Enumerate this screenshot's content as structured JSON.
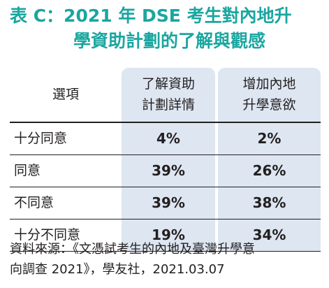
{
  "title": {
    "line1": "表 C：2021 年 DSE 考生對內地升",
    "line2": "學資助計劃的了解與觀感"
  },
  "table": {
    "options_header": "選項",
    "columns": [
      {
        "line1": "了解資助",
        "line2": "計劃詳情"
      },
      {
        "line1": "增加內地",
        "line2": "升學意欲"
      }
    ],
    "rows": [
      {
        "label": "十分同意",
        "values": [
          "4%",
          "2%"
        ]
      },
      {
        "label": "同意",
        "values": [
          "39%",
          "26%"
        ]
      },
      {
        "label": "不同意",
        "values": [
          "39%",
          "38%"
        ]
      },
      {
        "label": "十分不同意",
        "values": [
          "19%",
          "34%"
        ]
      }
    ]
  },
  "source": {
    "line1": "資料來源：《文憑試考生的內地及臺灣升學意",
    "line2": "向調查 2021》，學友社，2021.03.07"
  },
  "colors": {
    "title": "#1aa6a0",
    "column_shade": "#dde6f1",
    "text": "#231f20"
  }
}
